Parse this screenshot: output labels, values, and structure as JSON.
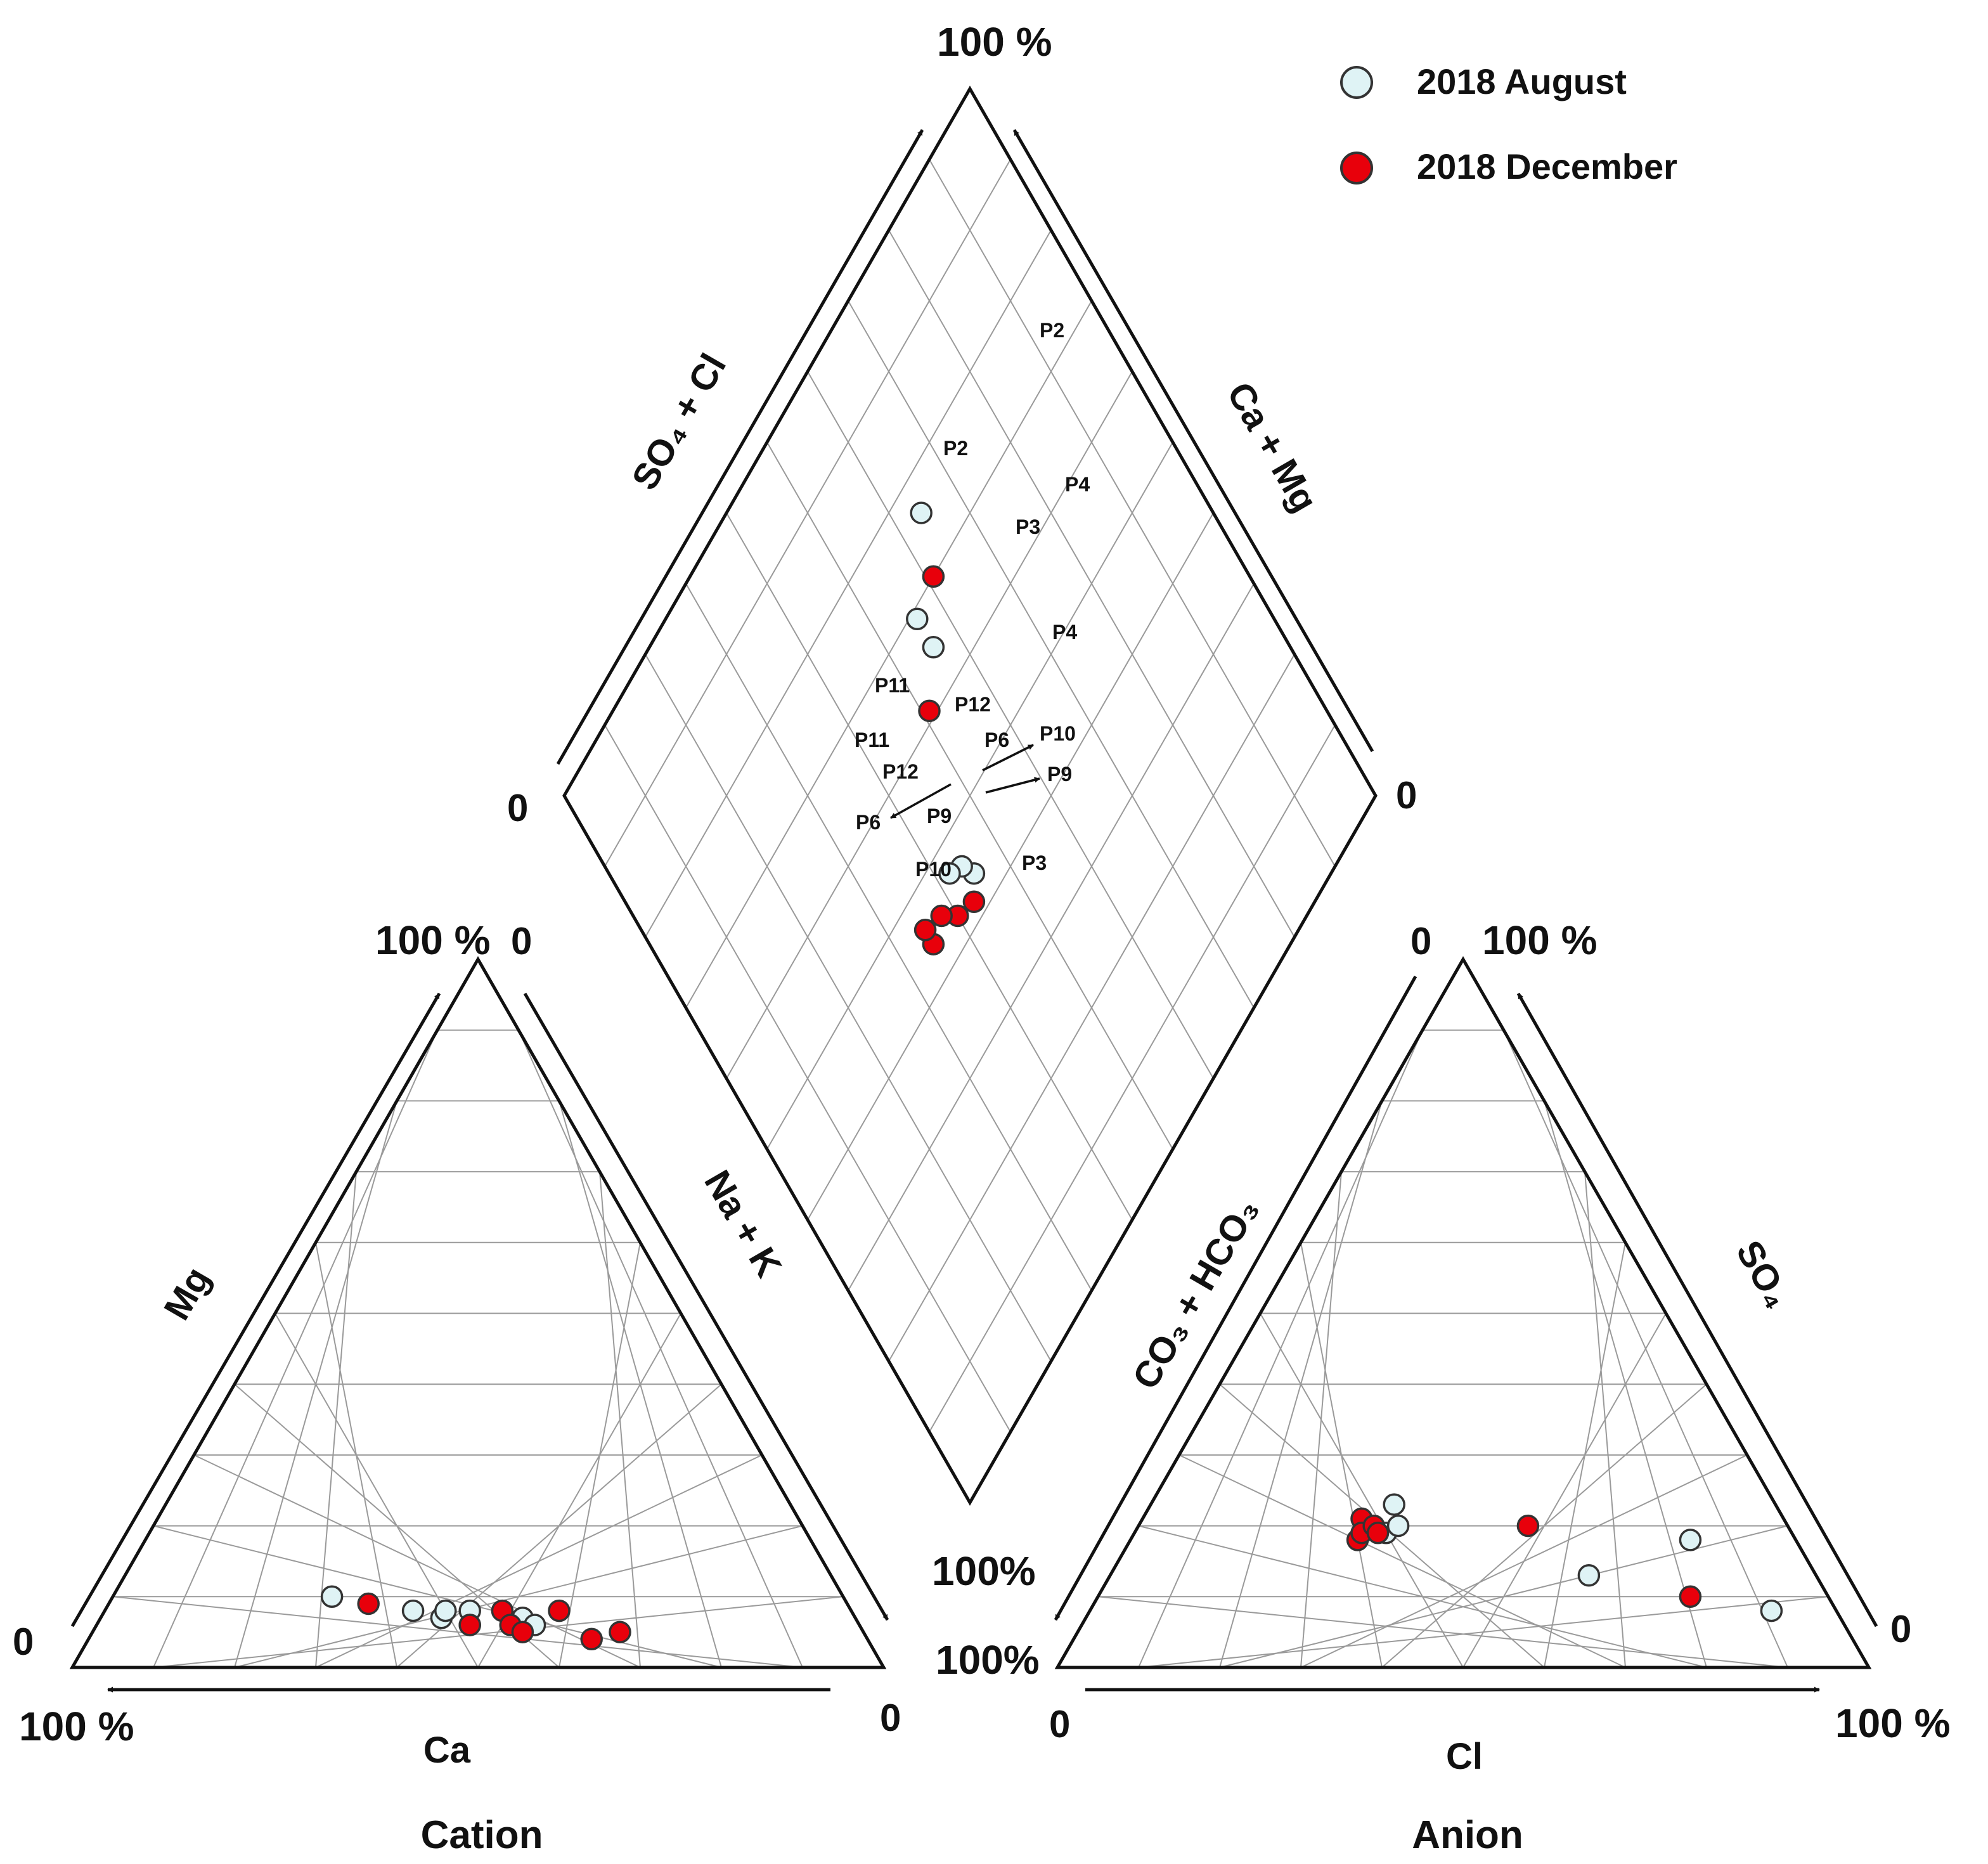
{
  "legend": {
    "items": [
      {
        "label": "2018 August",
        "fill": "#dff3f5",
        "stroke": "#333333"
      },
      {
        "label": "2018 December",
        "fill": "#e8000b",
        "stroke": "#333333"
      }
    ]
  },
  "labels": {
    "cation_title": "Cation",
    "anion_title": "Anion",
    "ca": "Ca",
    "mg": "Mg",
    "na_k": "Na + K",
    "cl": "Cl",
    "so4": "SO₄",
    "co3_hco3": "CO₃ + HCO₃",
    "so4_cl": "SO₄ + Cl",
    "ca_mg": "Ca + Mg"
  },
  "ticks": {
    "diamond_top": "100 %",
    "diamond_left": "0",
    "diamond_right": "0",
    "diamond_bottom": "100%",
    "cation_top_left": "100 %",
    "cation_top_right": "0",
    "cation_bottom_left_zero": "0",
    "cation_bottom_left_hundred": "100 %",
    "cation_bottom_right": "0",
    "anion_top_left": "0",
    "anion_top_right": "100 %",
    "anion_bottom_left_hundred": "100%",
    "anion_bottom_left_zero": "0",
    "anion_bottom_right_zero": "0",
    "anion_bottom_right_hundred": "100 %"
  },
  "chart_data": [
    {
      "type": "scatter",
      "name": "Cation",
      "axes": [
        "Ca",
        "Mg",
        "Na + K"
      ],
      "units": "%",
      "series": [
        {
          "name": "2018 August",
          "points": [
            {
              "ca": 63,
              "mg": 10
            },
            {
              "ca": 54,
              "mg": 8
            },
            {
              "ca": 51,
              "mg": 7
            },
            {
              "ca": 50,
              "mg": 8
            },
            {
              "ca": 47,
              "mg": 8
            },
            {
              "ca": 48,
              "mg": 6
            },
            {
              "ca": 41,
              "mg": 7
            },
            {
              "ca": 40,
              "mg": 6
            }
          ]
        },
        {
          "name": "2018 December",
          "points": [
            {
              "ca": 59,
              "mg": 9
            },
            {
              "ca": 48,
              "mg": 6
            },
            {
              "ca": 43,
              "mg": 8
            },
            {
              "ca": 43,
              "mg": 6
            },
            {
              "ca": 42,
              "mg": 5
            },
            {
              "ca": 36,
              "mg": 8
            },
            {
              "ca": 34,
              "mg": 4
            },
            {
              "ca": 30,
              "mg": 5
            }
          ]
        }
      ]
    },
    {
      "type": "scatter",
      "name": "Anion",
      "axes": [
        "Cl",
        "SO₄",
        "CO₃ + HCO₃"
      ],
      "units": "%",
      "series": [
        {
          "name": "2018 August",
          "points": [
            {
              "cl": 30,
              "so4": 23
            },
            {
              "cl": 31,
              "so4": 19
            },
            {
              "cl": 32,
              "so4": 20
            },
            {
              "cl": 59,
              "so4": 13
            },
            {
              "cl": 69,
              "so4": 18
            },
            {
              "cl": 84,
              "so4": 8
            }
          ]
        },
        {
          "name": "2018 December",
          "points": [
            {
              "cl": 27,
              "so4": 21
            },
            {
              "cl": 28,
              "so4": 18
            },
            {
              "cl": 28,
              "so4": 19
            },
            {
              "cl": 29,
              "so4": 20
            },
            {
              "cl": 30,
              "so4": 19
            },
            {
              "cl": 48,
              "so4": 20
            },
            {
              "cl": 73,
              "so4": 10
            }
          ]
        }
      ]
    },
    {
      "type": "scatter",
      "name": "Diamond",
      "axes": [
        "SO₄ + Cl",
        "Ca + Mg"
      ],
      "units": "%",
      "series": [
        {
          "name": "2018 August",
          "points": [
            {
              "id": "P2",
              "so4cl": 64,
              "camg": 76
            },
            {
              "id": "P4",
              "so4cl": 56,
              "camg": 69
            },
            {
              "id": "P3",
              "so4cl": 56,
              "camg": 65
            },
            {
              "id": "P11",
              "so4cl": 45,
              "camg": 44
            },
            {
              "id": "P12",
              "so4cl": 44,
              "camg": 46
            },
            {
              "id": "P6",
              "so4cl": 42,
              "camg": 47
            }
          ]
        },
        {
          "name": "2018 December",
          "points": [
            {
              "id": "P2",
              "so4cl": 61,
              "camg": 70
            },
            {
              "id": "P4",
              "so4cl": 51,
              "camg": 61
            },
            {
              "id": "P11",
              "so4cl": 43,
              "camg": 42
            },
            {
              "id": "P12",
              "so4cl": 40,
              "camg": 43
            },
            {
              "id": "P9",
              "so4cl": 38,
              "camg": 45
            },
            {
              "id": "P10",
              "so4cl": 35,
              "camg": 44
            },
            {
              "id": "P3",
              "so4cl": 35,
              "camg": 46
            }
          ]
        }
      ],
      "annotations": [
        "P2",
        "P4",
        "P3",
        "P11",
        "P12",
        "P6",
        "P10",
        "P9",
        "P2",
        "P4",
        "P11",
        "P12",
        "P6",
        "P9",
        "P10",
        "P3"
      ]
    }
  ]
}
